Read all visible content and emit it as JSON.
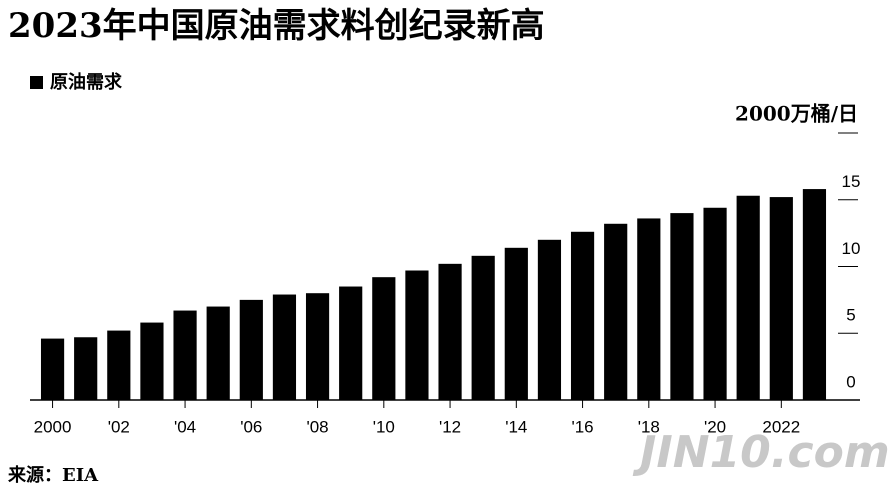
{
  "chart_data": {
    "type": "bar",
    "title": "2023年中国原油需求料创纪录新高",
    "legend": "原油需求",
    "source": "来源：EIA",
    "watermark": "JIN10.com",
    "color": "#000000",
    "categories": [
      "2000",
      null,
      "'02",
      null,
      "'04",
      null,
      "'06",
      null,
      "'08",
      null,
      "'10",
      null,
      "'12",
      null,
      "'14",
      null,
      "'16",
      null,
      "'18",
      null,
      "'20",
      null,
      "2022",
      null
    ],
    "series": [
      {
        "name": "原油需求",
        "color": "#000000",
        "values": [
          4.6,
          4.7,
          5.2,
          5.8,
          6.7,
          7.0,
          7.5,
          7.9,
          8.0,
          8.5,
          9.2,
          9.7,
          10.2,
          10.8,
          11.4,
          12.0,
          12.6,
          13.2,
          13.6,
          14.0,
          14.4,
          15.3,
          15.2,
          15.8
        ]
      }
    ],
    "ylim": [
      0,
      20
    ],
    "yticks": [
      0,
      5,
      10,
      15,
      {
        "value": 20,
        "label": "2000万桶/日"
      }
    ]
  }
}
